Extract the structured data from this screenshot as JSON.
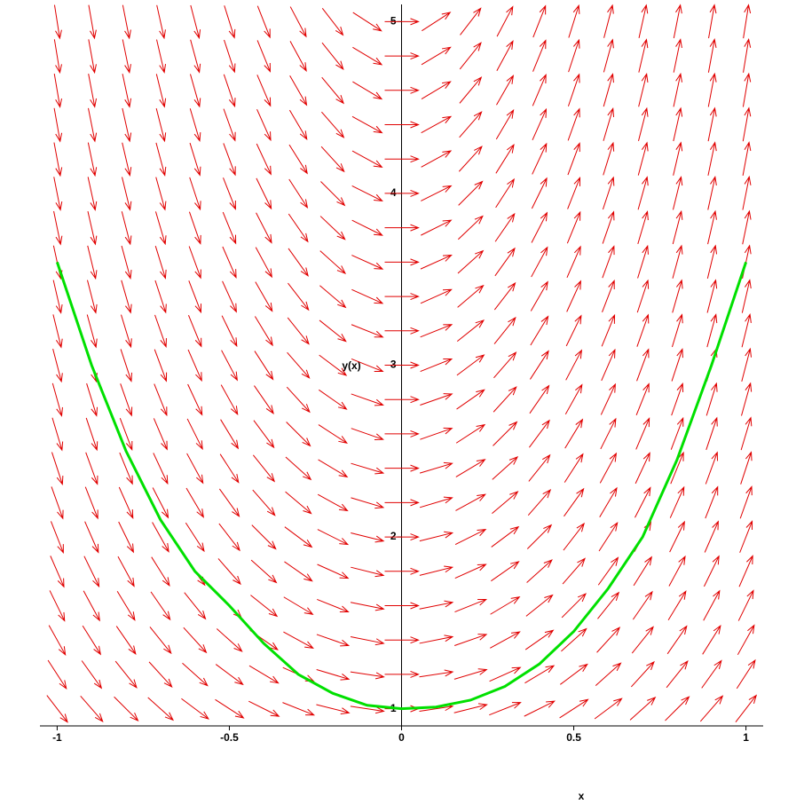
{
  "chart_data": {
    "type": "direction-field",
    "x_label": "x",
    "y_label": "y(x)",
    "xlim": [
      -1.05,
      1.05
    ],
    "ylim": [
      0.9,
      5.1
    ],
    "xticks": [
      -1,
      -0.5,
      0,
      0.5,
      1
    ],
    "yticks": [
      1,
      2,
      3,
      4,
      5
    ],
    "field": {
      "color": "#e00000",
      "x": [
        -1,
        -0.9,
        -0.8,
        -0.7,
        -0.6,
        -0.5,
        -0.4,
        -0.3,
        -0.2,
        -0.1,
        0,
        0.1,
        0.2,
        0.3,
        0.4,
        0.5,
        0.6,
        0.7,
        0.8,
        0.9,
        1
      ],
      "y": [
        1,
        1.2,
        1.4,
        1.6,
        1.8,
        2,
        2.2,
        2.4,
        2.6,
        2.8,
        3,
        3.2,
        3.4,
        3.6,
        3.8,
        4,
        4.2,
        4.4,
        4.6,
        4.8,
        5
      ],
      "slopes": [
        [
          -2.6,
          -2.3,
          -2.0,
          -1.8,
          -1.5,
          -1.3,
          -1.0,
          -0.8,
          -0.5,
          -0.3,
          0,
          0.3,
          0.5,
          0.8,
          1.0,
          1.3,
          1.5,
          1.8,
          2.0,
          2.3,
          2.6
        ],
        [
          -3.1,
          -2.8,
          -2.5,
          -2.2,
          -1.8,
          -1.5,
          -1.2,
          -0.9,
          -0.6,
          -0.3,
          0,
          0.3,
          0.6,
          0.9,
          1.2,
          1.5,
          1.8,
          2.2,
          2.5,
          2.8,
          3.1
        ],
        [
          -3.6,
          -3.2,
          -2.9,
          -2.5,
          -2.2,
          -1.8,
          -1.4,
          -1.1,
          -0.7,
          -0.4,
          0,
          0.4,
          0.7,
          1.1,
          1.4,
          1.8,
          2.2,
          2.5,
          2.9,
          3.2,
          3.6
        ],
        [
          -4.1,
          -3.7,
          -3.3,
          -2.9,
          -2.5,
          -2.0,
          -1.6,
          -1.2,
          -0.8,
          -0.4,
          0,
          0.4,
          0.8,
          1.2,
          1.6,
          2.0,
          2.5,
          2.9,
          3.3,
          3.7,
          4.1
        ],
        [
          -4.6,
          -4.1,
          -3.7,
          -3.2,
          -2.8,
          -2.3,
          -1.8,
          -1.4,
          -0.9,
          -0.5,
          0,
          0.5,
          0.9,
          1.4,
          1.8,
          2.3,
          2.8,
          3.2,
          3.7,
          4.1,
          4.6
        ],
        [
          -5.1,
          -4.6,
          -4.1,
          -3.6,
          -3.1,
          -2.6,
          -2.0,
          -1.5,
          -1.0,
          -0.5,
          0,
          0.5,
          1.0,
          1.5,
          2.0,
          2.6,
          3.1,
          3.6,
          4.1,
          4.6,
          5.1
        ],
        [
          -5.6,
          -5.1,
          -4.5,
          -3.9,
          -3.4,
          -2.8,
          -2.3,
          -1.7,
          -1.1,
          -0.6,
          0,
          0.6,
          1.1,
          1.7,
          2.3,
          2.8,
          3.4,
          3.9,
          4.5,
          5.1,
          5.6
        ],
        [
          -6.1,
          -5.5,
          -4.9,
          -4.3,
          -3.7,
          -3.1,
          -2.5,
          -1.8,
          -1.2,
          -0.6,
          0,
          0.6,
          1.2,
          1.8,
          2.5,
          3.1,
          3.7,
          4.3,
          4.9,
          5.5,
          6.1
        ],
        [
          -6.7,
          -6.0,
          -5.3,
          -4.7,
          -4.0,
          -3.3,
          -2.7,
          -2.0,
          -1.3,
          -0.7,
          0,
          0.7,
          1.3,
          2.0,
          2.7,
          3.3,
          4.0,
          4.7,
          5.3,
          6.0,
          6.7
        ],
        [
          -7.2,
          -6.5,
          -5.7,
          -5.0,
          -4.3,
          -3.6,
          -2.9,
          -2.2,
          -1.4,
          -0.7,
          0,
          0.7,
          1.4,
          2.2,
          2.9,
          3.6,
          4.3,
          5.0,
          5.7,
          6.5,
          7.2
        ],
        [
          -7.7,
          -6.9,
          -6.1,
          -5.4,
          -4.6,
          -3.8,
          -3.1,
          -2.3,
          -1.5,
          -0.8,
          0,
          0.8,
          1.5,
          2.3,
          3.1,
          3.8,
          4.6,
          5.4,
          6.1,
          6.9,
          7.7
        ],
        [
          -8.2,
          -7.4,
          -6.6,
          -5.7,
          -4.9,
          -4.1,
          -3.3,
          -2.5,
          -1.6,
          -0.8,
          0,
          0.8,
          1.6,
          2.5,
          3.3,
          4.1,
          4.9,
          5.7,
          6.6,
          7.4,
          8.2
        ],
        [
          -8.7,
          -7.8,
          -7.0,
          -6.1,
          -5.2,
          -4.4,
          -3.5,
          -2.6,
          -1.7,
          -0.9,
          0,
          0.9,
          1.7,
          2.6,
          3.5,
          4.4,
          5.2,
          6.1,
          7.0,
          7.8,
          8.7
        ],
        [
          -9.2,
          -8.3,
          -7.4,
          -6.5,
          -5.5,
          -4.6,
          -3.7,
          -2.8,
          -1.8,
          -0.9,
          0,
          0.9,
          1.8,
          2.8,
          3.7,
          4.6,
          5.5,
          6.5,
          7.4,
          8.3,
          9.2
        ],
        [
          -9.7,
          -8.8,
          -7.8,
          -6.8,
          -5.8,
          -4.9,
          -3.9,
          -2.9,
          -1.9,
          -1.0,
          0,
          1.0,
          1.9,
          2.9,
          3.9,
          4.9,
          5.8,
          6.8,
          7.8,
          8.8,
          9.7
        ],
        [
          -10.2,
          -9.2,
          -8.2,
          -7.2,
          -6.1,
          -5.1,
          -4.1,
          -3.1,
          -2.0,
          -1.0,
          0,
          1.0,
          2.0,
          3.1,
          4.1,
          5.1,
          6.1,
          7.2,
          8.2,
          9.2,
          10.2
        ],
        [
          -10.8,
          -9.7,
          -8.6,
          -7.5,
          -6.5,
          -5.4,
          -4.3,
          -3.2,
          -2.2,
          -1.1,
          0,
          1.1,
          2.2,
          3.2,
          4.3,
          5.4,
          6.5,
          7.5,
          8.6,
          9.7,
          10.8
        ],
        [
          -11.3,
          -10.1,
          -9.0,
          -7.9,
          -6.8,
          -5.6,
          -4.5,
          -3.4,
          -2.3,
          -1.1,
          0,
          1.1,
          2.3,
          3.4,
          4.5,
          5.6,
          6.8,
          7.9,
          9.0,
          10.1,
          11.3
        ],
        [
          -11.8,
          -10.6,
          -9.4,
          -8.2,
          -7.1,
          -5.9,
          -4.7,
          -3.5,
          -2.4,
          -1.2,
          0,
          1.2,
          2.4,
          3.5,
          4.7,
          5.9,
          7.1,
          8.2,
          9.4,
          10.6,
          11.8
        ],
        [
          -12.3,
          -11.1,
          -9.8,
          -8.6,
          -7.4,
          -6.1,
          -4.9,
          -3.7,
          -2.5,
          -1.2,
          0,
          1.2,
          2.5,
          3.7,
          4.9,
          6.1,
          7.4,
          8.6,
          9.8,
          11.1,
          12.3
        ],
        [
          -12.8,
          -11.5,
          -10.2,
          -9.0,
          -7.7,
          -6.4,
          -5.1,
          -3.8,
          -2.6,
          -1.3,
          0,
          1.3,
          2.6,
          3.8,
          5.1,
          6.4,
          7.7,
          9.0,
          10.2,
          11.5,
          12.8
        ]
      ]
    },
    "curve": {
      "color": "#00e000",
      "x": [
        -1,
        -0.9,
        -0.8,
        -0.7,
        -0.6,
        -0.5,
        -0.4,
        -0.3,
        -0.2,
        -0.1,
        0,
        0.1,
        0.2,
        0.3,
        0.4,
        0.5,
        0.6,
        0.7,
        0.8,
        0.9,
        1
      ],
      "y": [
        3.6,
        3.0,
        2.5,
        2.1,
        1.8,
        1.6,
        1.38,
        1.2,
        1.09,
        1.02,
        1,
        1.01,
        1.05,
        1.13,
        1.26,
        1.45,
        1.7,
        2.0,
        2.45,
        3.0,
        3.6
      ]
    }
  }
}
